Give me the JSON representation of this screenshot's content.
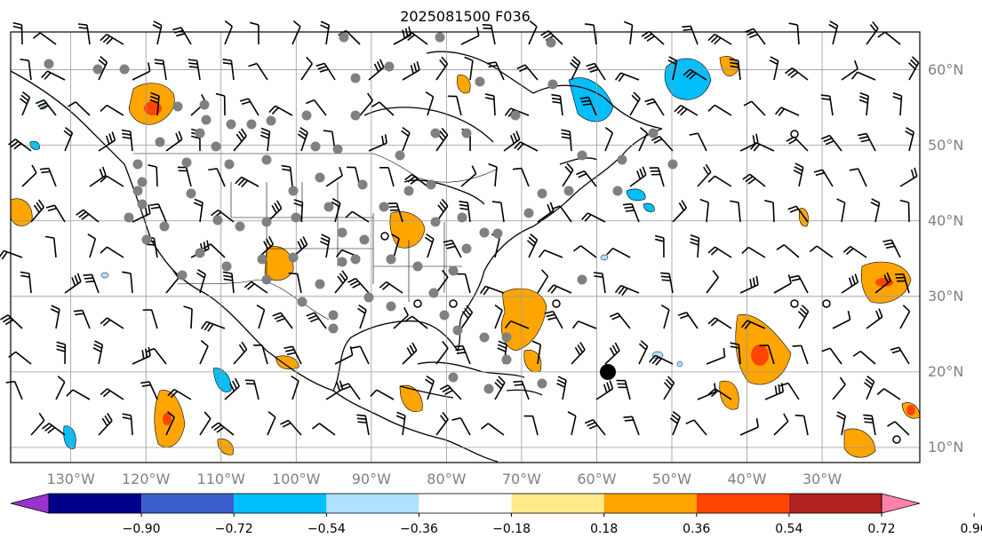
{
  "title": "2025081500 F036",
  "lat_labels": [
    {
      "text": "60°N",
      "lat": 60
    },
    {
      "text": "50°N",
      "lat": 50
    },
    {
      "text": "40°N",
      "lat": 40
    },
    {
      "text": "30°N",
      "lat": 30
    },
    {
      "text": "20°N",
      "lat": 20
    },
    {
      "text": "10°N",
      "lat": 10
    }
  ],
  "lon_labels": [
    {
      "text": "130°W",
      "lon": -130
    },
    {
      "text": "120°W",
      "lon": -120
    },
    {
      "text": "110°W",
      "lon": -110
    },
    {
      "text": "100°W",
      "lon": -100
    },
    {
      "text": "90°W",
      "lon": -90
    },
    {
      "text": "80°W",
      "lon": -80
    },
    {
      "text": "70°W",
      "lon": -70
    },
    {
      "text": "60°W",
      "lon": -60
    },
    {
      "text": "50°W",
      "lon": -50
    },
    {
      "text": "40°W",
      "lon": -40
    },
    {
      "text": "30°W",
      "lon": -30
    }
  ],
  "colorbar": {
    "ticks": [
      "−0.90",
      "−0.72",
      "−0.54",
      "−0.36",
      "−0.18",
      "0.18",
      "0.36",
      "0.54",
      "0.72",
      "0.90"
    ],
    "colors": [
      "#9a32cd",
      "#00008b",
      "#3a5fcd",
      "#00bfff",
      "#b0e2ff",
      "#ffffff",
      "#ffe98a",
      "#ffa500",
      "#ff4500",
      "#b22222",
      "#ff82ab"
    ]
  },
  "map_extent": {
    "lon_min": -138,
    "lon_max": -17,
    "lat_min": 8,
    "lat_max": 65
  }
}
